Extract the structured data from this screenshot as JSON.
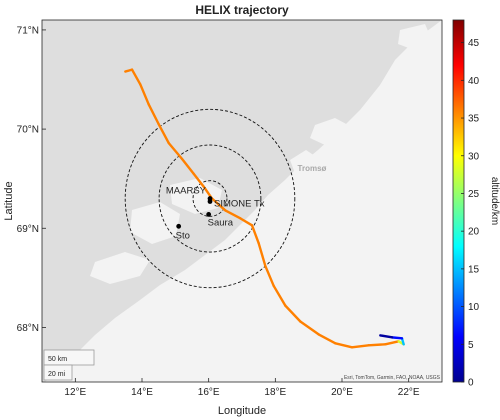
{
  "title": "HELIX trajectory",
  "xlabel": "Longitude",
  "ylabel": "Latitude",
  "colorbar_label": "altitude/km",
  "x_ticks": [
    {
      "value": 12,
      "label": "12°E"
    },
    {
      "value": 14,
      "label": "14°E"
    },
    {
      "value": 16,
      "label": "16°E"
    },
    {
      "value": 18,
      "label": "18°E"
    },
    {
      "value": 20,
      "label": "20°E"
    },
    {
      "value": 22,
      "label": "22°E"
    }
  ],
  "y_ticks": [
    {
      "value": 68,
      "label": "68°N"
    },
    {
      "value": 69,
      "label": "69°N"
    },
    {
      "value": 70,
      "label": "70°N"
    },
    {
      "value": 71,
      "label": "71°N"
    }
  ],
  "colorbar_ticks": [
    {
      "value": 0,
      "label": "0"
    },
    {
      "value": 5,
      "label": "5"
    },
    {
      "value": 10,
      "label": "10"
    },
    {
      "value": 15,
      "label": "15"
    },
    {
      "value": 20,
      "label": "20"
    },
    {
      "value": 25,
      "label": "25"
    },
    {
      "value": 30,
      "label": "30"
    },
    {
      "value": 35,
      "label": "35"
    },
    {
      "value": 40,
      "label": "40"
    },
    {
      "value": 45,
      "label": "45"
    }
  ],
  "colorbar_range": [
    0,
    48
  ],
  "map_label_city": "Tromsø",
  "attribution": "Esri, TomTom, Garmin, FAO, NOAA, USGS",
  "scalebar": {
    "km": "50 km",
    "mi": "20 mi"
  },
  "colors": {
    "sea": "#dedede",
    "land": "#f3f3f3",
    "trajectory_high": "#ff4a0c",
    "ring": "#111111"
  },
  "chart_data": {
    "type": "map",
    "xlim": [
      11,
      23
    ],
    "ylim": [
      67.45,
      71.1
    ],
    "stations": [
      {
        "name": "MAARSY",
        "lon": 16.04,
        "lat": 69.3
      },
      {
        "name": "SIMONE Tx",
        "lon": 16.04,
        "lat": 69.27
      },
      {
        "name": "Saura",
        "lon": 16.0,
        "lat": 69.14
      },
      {
        "name": "Sto",
        "lon": 15.1,
        "lat": 69.02
      }
    ],
    "range_rings": [
      {
        "center_lon": 16.04,
        "center_lat": 69.3,
        "radius_km": 20
      },
      {
        "center_lon": 16.04,
        "center_lat": 69.3,
        "radius_km": 60
      },
      {
        "center_lon": 16.04,
        "center_lat": 69.3,
        "radius_km": 100
      }
    ],
    "trajectory": [
      {
        "lon": 13.5,
        "lat": 70.58,
        "alt": 36
      },
      {
        "lon": 13.7,
        "lat": 70.6,
        "alt": 36
      },
      {
        "lon": 13.95,
        "lat": 70.45,
        "alt": 36
      },
      {
        "lon": 14.2,
        "lat": 70.25,
        "alt": 36
      },
      {
        "lon": 14.5,
        "lat": 70.05,
        "alt": 36
      },
      {
        "lon": 14.8,
        "lat": 69.86,
        "alt": 36
      },
      {
        "lon": 15.2,
        "lat": 69.7,
        "alt": 36
      },
      {
        "lon": 15.55,
        "lat": 69.55,
        "alt": 36
      },
      {
        "lon": 15.85,
        "lat": 69.42,
        "alt": 36
      },
      {
        "lon": 16.1,
        "lat": 69.3,
        "alt": 36
      },
      {
        "lon": 16.5,
        "lat": 69.18,
        "alt": 36
      },
      {
        "lon": 16.95,
        "lat": 69.1,
        "alt": 36
      },
      {
        "lon": 17.3,
        "lat": 69.03,
        "alt": 36
      },
      {
        "lon": 17.5,
        "lat": 68.85,
        "alt": 36
      },
      {
        "lon": 17.7,
        "lat": 68.62,
        "alt": 36
      },
      {
        "lon": 17.95,
        "lat": 68.42,
        "alt": 36
      },
      {
        "lon": 18.3,
        "lat": 68.22,
        "alt": 36
      },
      {
        "lon": 18.75,
        "lat": 68.06,
        "alt": 36
      },
      {
        "lon": 19.3,
        "lat": 67.93,
        "alt": 36
      },
      {
        "lon": 19.8,
        "lat": 67.84,
        "alt": 36
      },
      {
        "lon": 20.3,
        "lat": 67.8,
        "alt": 36
      },
      {
        "lon": 20.8,
        "lat": 67.82,
        "alt": 36
      },
      {
        "lon": 21.3,
        "lat": 67.83,
        "alt": 36
      },
      {
        "lon": 21.7,
        "lat": 67.86,
        "alt": 36
      },
      {
        "lon": 21.85,
        "lat": 67.83,
        "alt": 20
      },
      {
        "lon": 21.8,
        "lat": 67.89,
        "alt": 10
      },
      {
        "lon": 21.5,
        "lat": 67.9,
        "alt": 3
      },
      {
        "lon": 21.15,
        "lat": 67.92,
        "alt": 0
      }
    ]
  }
}
